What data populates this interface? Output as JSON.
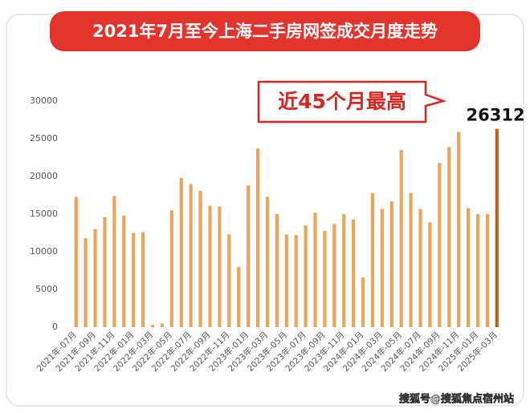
{
  "chart_data": {
    "type": "bar",
    "title": "2021年7月至今上海二手房网签成交月度走势",
    "annotation": "近45个月最高",
    "watermark": "搜狐号@搜狐焦点宿州站",
    "categories": [
      "2021年-07月",
      null,
      "2021年-09月",
      null,
      "2021年-11月",
      null,
      "2022年-01月",
      null,
      "2022年-03月",
      null,
      "2022年-05月",
      null,
      "2022年-07月",
      null,
      "2022年-09月",
      null,
      "2022年-11月",
      null,
      "2023年-01月",
      null,
      "2023年-03月",
      null,
      "2023年-05月",
      null,
      "2023年-07月",
      null,
      "2023年-09月",
      null,
      "2023年-11月",
      null,
      "2024年-01月",
      null,
      "2024年-03月",
      null,
      "2024年-05月",
      null,
      "2024年-07月",
      null,
      "2024年-09月",
      null,
      "2024年-11月",
      null,
      "2025年-01月",
      null,
      "2025年-03月"
    ],
    "values": [
      17300,
      11800,
      13000,
      14600,
      17400,
      14800,
      12500,
      12600,
      300,
      500,
      15500,
      19800,
      19000,
      18100,
      16100,
      16000,
      12300,
      8000,
      18800,
      23700,
      17300,
      15000,
      12300,
      12200,
      13500,
      15200,
      12800,
      13700,
      15000,
      14300,
      6600,
      17800,
      15700,
      16700,
      23500,
      17800,
      15700,
      13900,
      21800,
      23900,
      25900,
      15800,
      15000,
      15000,
      26312
    ],
    "highlight_index": 44,
    "color": "#e9a65a",
    "highlight_color": "#b5641f",
    "ylim": [
      0,
      30000
    ],
    "yticks": [
      0,
      5000,
      10000,
      15000,
      20000,
      25000,
      30000
    ],
    "grid": false
  }
}
